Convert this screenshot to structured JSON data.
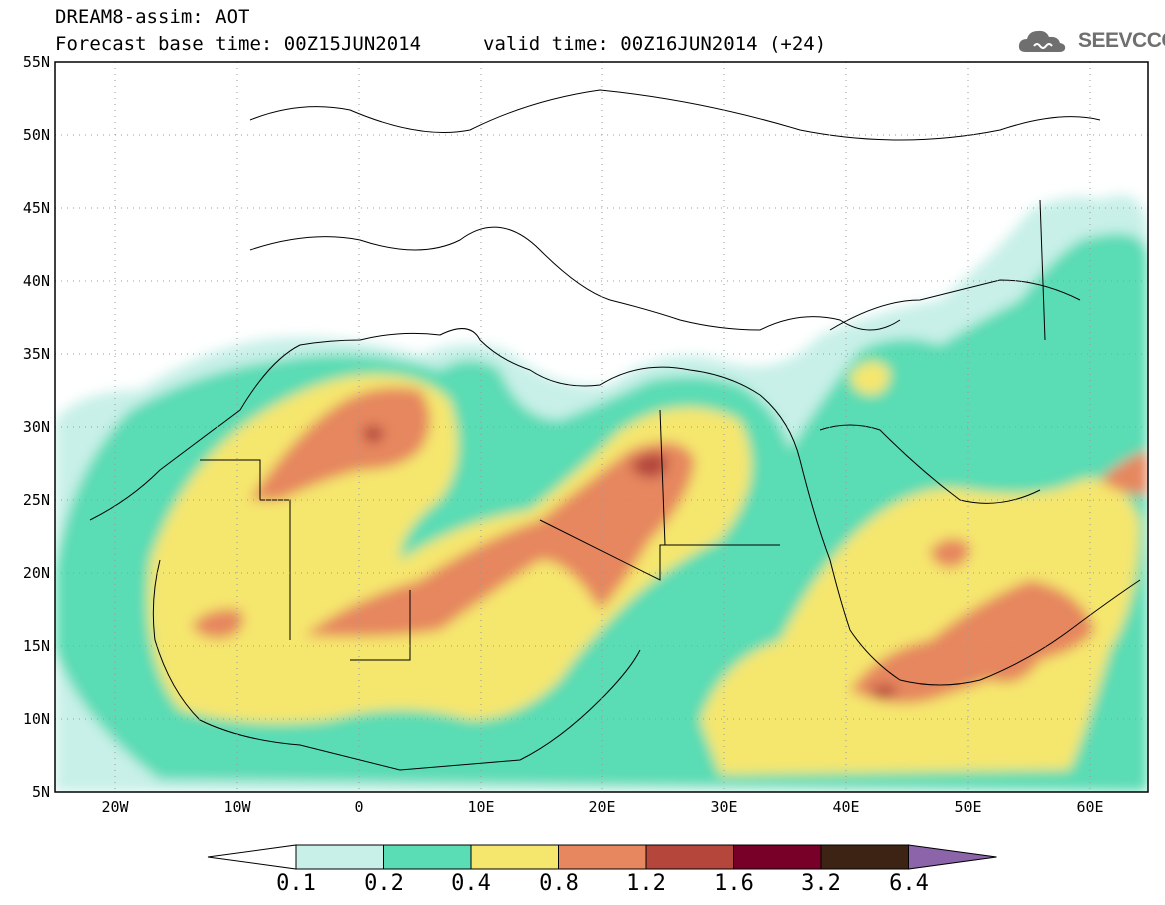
{
  "title": {
    "line1": "DREAM8-assim: AOT",
    "line2": "Forecast base time: 00Z15JUN2014",
    "valid": "valid time: 00Z16JUN2014 (+24)"
  },
  "logo": {
    "text": "SEEVCCC",
    "icon": "cloud-logo-icon",
    "color": "#6f6f6f"
  },
  "map": {
    "lon_range": [
      -25,
      65
    ],
    "lat_range": [
      5,
      55
    ],
    "lat_ticks": [
      "5N",
      "10N",
      "15N",
      "20N",
      "25N",
      "30N",
      "35N",
      "40N",
      "45N",
      "50N",
      "55N"
    ],
    "lon_ticks": [
      "20W",
      "10W",
      "0",
      "10E",
      "20E",
      "30E",
      "40E",
      "50E",
      "60E"
    ],
    "grid": "dotted"
  },
  "legend": {
    "labels": [
      "0.1",
      "0.2",
      "0.4",
      "0.8",
      "1.2",
      "1.6",
      "3.2",
      "6.4"
    ],
    "colors": [
      "#ffffff",
      "#c8f0e8",
      "#5adcb4",
      "#f5e66e",
      "#e6875f",
      "#b4463c",
      "#780028",
      "#3c2314",
      "#8c64aa"
    ]
  }
}
